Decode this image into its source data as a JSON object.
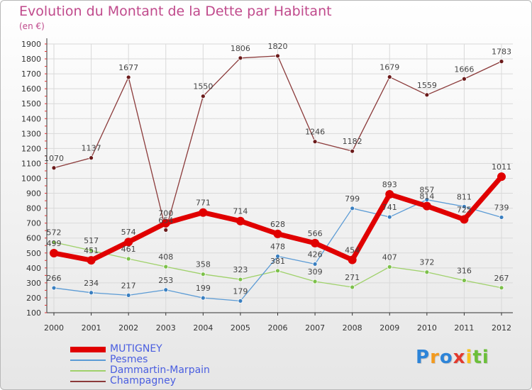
{
  "title": "Evolution du Montant de la Dette par Habitant",
  "subtitle": "(en €)",
  "logo": {
    "letters": [
      "P",
      "r",
      "o",
      "x",
      "i",
      "t",
      "i"
    ],
    "colors": [
      "#2d84d8",
      "#f39a1e",
      "#2d84d8",
      "#e23a2e",
      "#f6c21d",
      "#6cbf3a",
      "#6cbf3a"
    ]
  },
  "chart_data": {
    "type": "line",
    "title": "Evolution du Montant de la Dette par Habitant",
    "subtitle": "(en €)",
    "xlabel": "",
    "ylabel": "",
    "x": [
      "2000",
      "2001",
      "2002",
      "2003",
      "2004",
      "2005",
      "2006",
      "2007",
      "2008",
      "2009",
      "2010",
      "2011",
      "2012"
    ],
    "ylim": [
      100,
      1900
    ],
    "yticks": [
      100,
      200,
      300,
      400,
      500,
      600,
      700,
      800,
      900,
      1000,
      1100,
      1200,
      1300,
      1400,
      1500,
      1600,
      1700,
      1800,
      1900
    ],
    "grid": true,
    "legend_position": "bottom-left",
    "series": [
      {
        "name": "MUTIGNEY",
        "values": [
          499,
          451,
          574,
          700,
          771,
          714,
          628,
          566,
          454,
          893,
          814,
          725,
          1011
        ],
        "labels": [
          "499",
          "451",
          "574",
          "700",
          "771",
          "714",
          "628",
          "566",
          "454",
          "893",
          "814",
          "725",
          "1011"
        ],
        "color": "#e00000",
        "marker": "#e00000",
        "style": "thick"
      },
      {
        "name": "Pesmes",
        "values": [
          266,
          234,
          217,
          253,
          199,
          179,
          478,
          426,
          799,
          741,
          857,
          811,
          739
        ],
        "labels": [
          "266",
          "234",
          "217",
          "253",
          "199",
          "179",
          "478",
          "426",
          "799",
          "741",
          "857",
          "811",
          "739"
        ],
        "color": "#5b9bd5",
        "marker": "#3a7fc0",
        "style": "thin"
      },
      {
        "name": "Dammartin-Marpain",
        "values": [
          572,
          517,
          461,
          408,
          358,
          323,
          381,
          309,
          271,
          407,
          372,
          316,
          267
        ],
        "labels": [
          "572",
          "517",
          "461",
          "408",
          "358",
          "323",
          "381",
          "309",
          "271",
          "407",
          "372",
          "316",
          "267"
        ],
        "color": "#9fd16a",
        "marker": "#7cc04a",
        "style": "thin"
      },
      {
        "name": "Champagney",
        "values": [
          1070,
          1137,
          1677,
          654,
          1550,
          1806,
          1820,
          1246,
          1182,
          1679,
          1559,
          1666,
          1783
        ],
        "labels": [
          "1070",
          "1137",
          "1677",
          "654",
          "1550",
          "1806",
          "1820",
          "1246",
          "1182",
          "1679",
          "1559",
          "1666",
          "1783"
        ],
        "color": "#8b3a3a",
        "marker": "#6b1a1a",
        "style": "thin"
      }
    ]
  }
}
